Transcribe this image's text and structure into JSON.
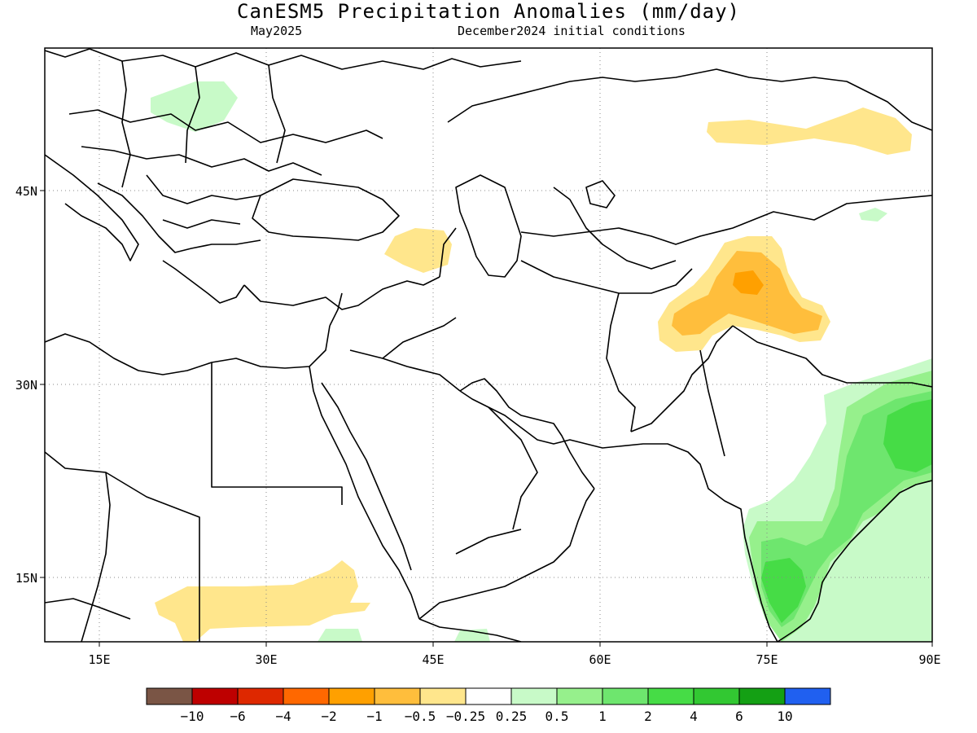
{
  "title": "CanESM5 Precipitation Anomalies (mm/day)",
  "subtitle_left": "May2025",
  "subtitle_right": "December2024 initial conditions",
  "axes": {
    "lon_labels": [
      "15E",
      "30E",
      "45E",
      "60E",
      "75E",
      "90E"
    ],
    "lat_labels": [
      "45N",
      "30N",
      "15N"
    ],
    "lon_range": [
      10,
      90
    ],
    "lat_range": [
      10,
      56
    ],
    "grid": "dotted"
  },
  "legend": {
    "colors": [
      "#7a5545",
      "#be0000",
      "#de2800",
      "#ff6800",
      "#ffa000",
      "#ffbe3c",
      "#ffe68c",
      "#ffffff",
      "#c8fac8",
      "#96f08c",
      "#6ee66e",
      "#46dc46",
      "#32c832",
      "#14a014",
      "#2060f0"
    ],
    "labels": [
      "−10",
      "−6",
      "−4",
      "−2",
      "−1",
      "−0.5",
      "−0.25",
      "0.25",
      "0.5",
      "1",
      "2",
      "4",
      "6",
      "10"
    ]
  }
}
